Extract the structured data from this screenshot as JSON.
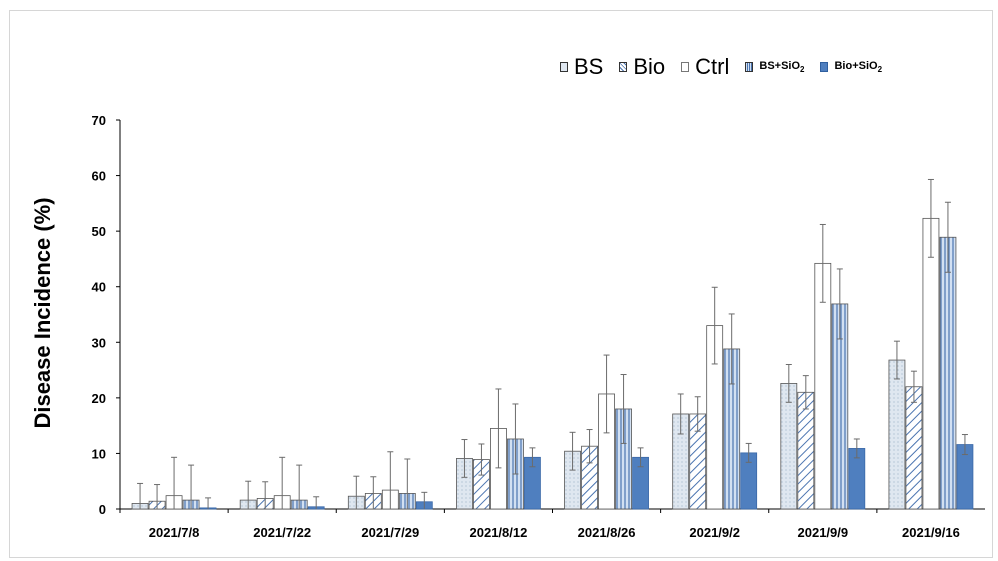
{
  "chart_data": {
    "type": "bar",
    "ylabel": "Disease Incidence (%)",
    "xlabel": "",
    "ylim": [
      0,
      70
    ],
    "yticks": [
      0,
      10,
      20,
      30,
      40,
      50,
      60,
      70
    ],
    "grid": false,
    "legend_position": "top-right",
    "categories": [
      "2021/7/8",
      "2021/7/22",
      "2021/7/29",
      "2021/8/12",
      "2021/8/26",
      "2021/9/2",
      "2021/9/9",
      "2021/9/16"
    ],
    "series": [
      {
        "name": "BS",
        "fill": "#dfe7f0",
        "pattern": "dots",
        "values": [
          1.0,
          1.6,
          2.3,
          9.1,
          10.4,
          17.1,
          22.6,
          26.8
        ],
        "errors": [
          3.6,
          3.4,
          3.6,
          3.4,
          3.4,
          3.6,
          3.4,
          3.4
        ]
      },
      {
        "name": "Bio",
        "fill": "#ffffff",
        "pattern": "diagonal",
        "values": [
          1.4,
          1.9,
          2.8,
          8.9,
          11.3,
          17.1,
          21.0,
          22.0
        ],
        "errors": [
          3.0,
          3.0,
          3.0,
          2.8,
          3.0,
          3.1,
          3.0,
          2.8
        ]
      },
      {
        "name": "Ctrl",
        "fill": "#ffffff",
        "pattern": "none",
        "values": [
          2.4,
          2.4,
          3.4,
          14.5,
          20.7,
          33.0,
          44.2,
          52.3
        ],
        "errors": [
          6.9,
          6.9,
          6.9,
          7.1,
          7.0,
          6.9,
          7.0,
          7.0
        ]
      },
      {
        "name": "BS+SiO2",
        "fill": "#d2e0f2",
        "pattern": "vertical",
        "values": [
          1.6,
          1.6,
          2.8,
          12.6,
          18.0,
          28.8,
          36.9,
          48.9
        ],
        "errors": [
          6.3,
          6.3,
          6.2,
          6.3,
          6.2,
          6.3,
          6.3,
          6.3
        ]
      },
      {
        "name": "Bio+SiO2",
        "fill": "#4f7fbf",
        "pattern": "solid",
        "values": [
          0.2,
          0.4,
          1.3,
          9.3,
          9.3,
          10.1,
          10.9,
          11.6
        ],
        "errors": [
          1.8,
          1.8,
          1.7,
          1.7,
          1.7,
          1.7,
          1.7,
          1.8
        ]
      }
    ]
  },
  "legend": {
    "bs": "BS",
    "bio": "Bio",
    "ctrl": "Ctrl",
    "bs_sio2_prefix": "BS+SiO",
    "bio_sio2_prefix": "Bio+SiO",
    "subscript": "2"
  }
}
